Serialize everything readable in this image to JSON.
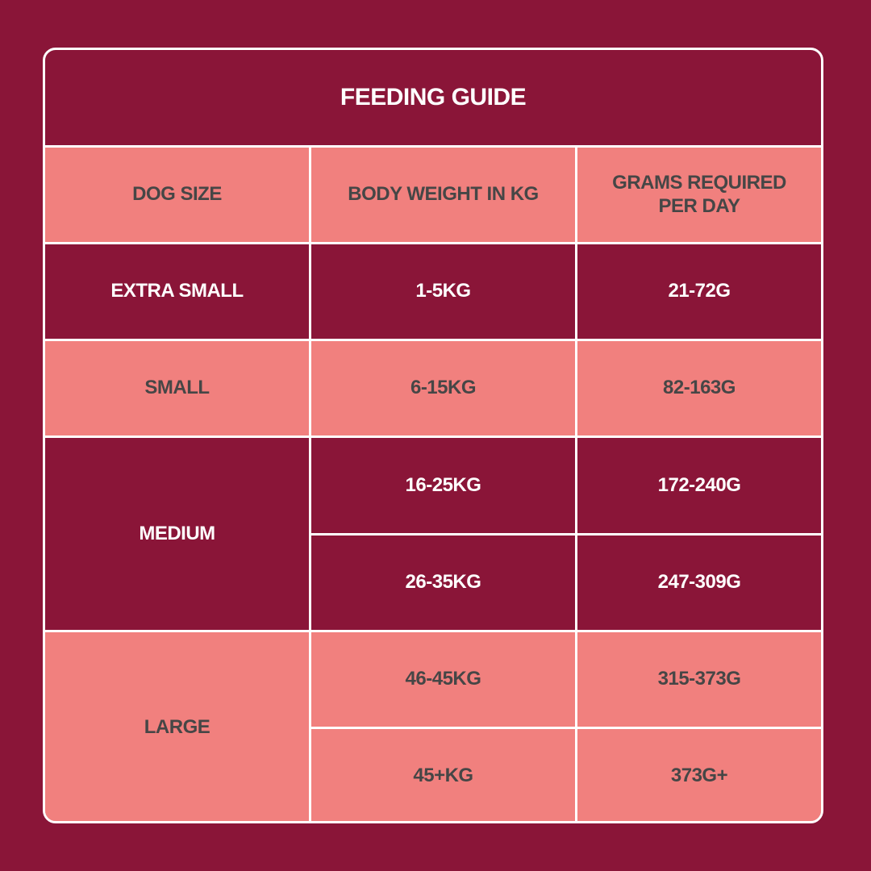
{
  "title": "FEEDING GUIDE",
  "colors": {
    "background": "#8a1538",
    "dark_row": "#8a1538",
    "light_row": "#f1807e",
    "border": "#ffffff",
    "dark_text": "#464646",
    "light_text": "#ffffff"
  },
  "table": {
    "headers": [
      "DOG SIZE",
      "BODY WEIGHT IN KG",
      "GRAMS REQUIRED PER DAY"
    ],
    "groups": [
      {
        "size": "EXTRA SMALL",
        "rows": [
          {
            "weight": "1-5KG",
            "grams": "21-72G"
          }
        ]
      },
      {
        "size": "SMALL",
        "rows": [
          {
            "weight": "6-15KG",
            "grams": "82-163G"
          }
        ]
      },
      {
        "size": "MEDIUM",
        "rows": [
          {
            "weight": "16-25KG",
            "grams": "172-240G"
          },
          {
            "weight": "26-35KG",
            "grams": "247-309G"
          }
        ]
      },
      {
        "size": "LARGE",
        "rows": [
          {
            "weight": "46-45KG",
            "grams": "315-373G"
          },
          {
            "weight": "45+KG",
            "grams": "373G+"
          }
        ]
      }
    ]
  }
}
